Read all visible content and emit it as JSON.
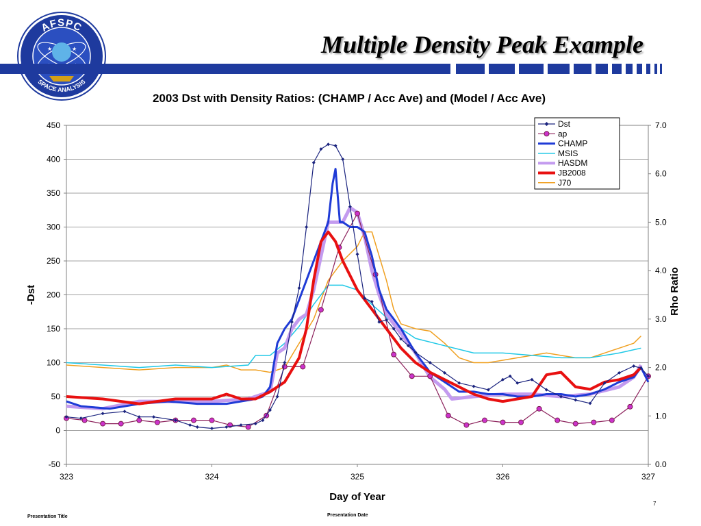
{
  "slide": {
    "title": "Multiple Density Peak Example",
    "logo_text_top": "AFSPC",
    "logo_text_bottom": "SPACE ANALYSIS",
    "footer_title": "Presentation Title",
    "footer_date": "Presentation Date",
    "page_number": "7",
    "brand_color": "#1e3a9e"
  },
  "chart_data": {
    "type": "line",
    "title": "2003 Dst with Density Ratios: (CHAMP / Acc Ave) and (Model / Acc Ave)",
    "xlabel": "Day of Year",
    "ylabel": "-Dst",
    "y2label": "Rho Ratio",
    "xlim": [
      323,
      327
    ],
    "ylim": [
      -50,
      450
    ],
    "y2lim": [
      0,
      7
    ],
    "xticks": [
      "323",
      "324",
      "325",
      "326",
      "327"
    ],
    "yticks": [
      "-50",
      "0",
      "50",
      "100",
      "150",
      "200",
      "250",
      "300",
      "350",
      "400",
      "450"
    ],
    "y2ticks": [
      "0.0",
      "1.0",
      "2.0",
      "3.0",
      "4.0",
      "5.0",
      "6.0",
      "7.0"
    ],
    "grid": true,
    "legend_position": "top-right",
    "series": [
      {
        "name": "Dst",
        "axis": "left",
        "color": "#1a237e",
        "marker": "diamond",
        "x": [
          323.0,
          323.1,
          323.25,
          323.4,
          323.5,
          323.6,
          323.75,
          323.85,
          323.9,
          324.0,
          324.1,
          324.2,
          324.3,
          324.35,
          324.4,
          324.45,
          324.5,
          324.55,
          324.6,
          324.65,
          324.7,
          324.75,
          324.8,
          324.85,
          324.9,
          324.95,
          325.0,
          325.05,
          325.1,
          325.15,
          325.2,
          325.25,
          325.3,
          325.35,
          325.4,
          325.5,
          325.6,
          325.7,
          325.8,
          325.9,
          326.0,
          326.05,
          326.1,
          326.2,
          326.3,
          326.4,
          326.5,
          326.6,
          326.7,
          326.8,
          326.9,
          326.95,
          327.0
        ],
        "y": [
          20,
          18,
          25,
          28,
          20,
          20,
          15,
          8,
          5,
          3,
          5,
          8,
          10,
          15,
          30,
          50,
          100,
          160,
          210,
          300,
          395,
          415,
          422,
          420,
          400,
          330,
          260,
          195,
          190,
          160,
          163,
          150,
          135,
          125,
          115,
          100,
          85,
          70,
          65,
          60,
          75,
          80,
          70,
          75,
          60,
          50,
          45,
          40,
          70,
          85,
          95,
          92,
          80
        ]
      },
      {
        "name": "ap",
        "axis": "left",
        "color": "#8b1f5a",
        "marker": "circle",
        "x": [
          323.0,
          323.125,
          323.25,
          323.375,
          323.5,
          323.625,
          323.75,
          323.875,
          324.0,
          324.125,
          324.25,
          324.375,
          324.5,
          324.625,
          324.75,
          324.875,
          325.0,
          325.125,
          325.25,
          325.375,
          325.5,
          325.625,
          325.75,
          325.875,
          326.0,
          326.125,
          326.25,
          326.375,
          326.5,
          326.625,
          326.75,
          326.875,
          327.0
        ],
        "y": [
          18,
          15,
          10,
          10,
          15,
          12,
          15,
          15,
          15,
          8,
          5,
          22,
          94,
          94,
          178,
          270,
          320,
          230,
          112,
          80,
          80,
          22,
          8,
          15,
          12,
          12,
          32,
          15,
          10,
          12,
          15,
          35,
          80
        ]
      },
      {
        "name": "CHAMP",
        "axis": "right",
        "color": "#1f3bd6",
        "width": 3,
        "x": [
          323.0,
          323.1,
          323.3,
          323.5,
          323.7,
          323.9,
          324.1,
          324.3,
          324.35,
          324.4,
          324.45,
          324.5,
          324.55,
          324.6,
          324.65,
          324.7,
          324.75,
          324.8,
          324.83,
          324.85,
          324.88,
          324.9,
          324.95,
          325.0,
          325.05,
          325.1,
          325.15,
          325.2,
          325.3,
          325.4,
          325.5,
          325.6,
          325.7,
          325.8,
          325.9,
          326.0,
          326.1,
          326.2,
          326.3,
          326.4,
          326.5,
          326.6,
          326.7,
          326.8,
          326.9,
          326.95,
          327.0
        ],
        "y": [
          1.3,
          1.2,
          1.15,
          1.25,
          1.3,
          1.25,
          1.25,
          1.35,
          1.4,
          1.6,
          2.5,
          2.8,
          3.0,
          3.4,
          3.8,
          4.2,
          4.6,
          5.0,
          5.8,
          6.1,
          5.0,
          5.0,
          4.9,
          4.9,
          4.8,
          4.3,
          3.6,
          3.2,
          2.8,
          2.3,
          1.9,
          1.7,
          1.5,
          1.5,
          1.45,
          1.45,
          1.4,
          1.4,
          1.45,
          1.45,
          1.4,
          1.45,
          1.55,
          1.7,
          1.8,
          2.0,
          1.7
        ]
      },
      {
        "name": "MSIS",
        "axis": "right",
        "color": "#1ec8e6",
        "width": 1.5,
        "x": [
          323.0,
          323.25,
          323.5,
          323.75,
          324.0,
          324.25,
          324.3,
          324.4,
          324.5,
          324.6,
          324.7,
          324.8,
          324.9,
          325.0,
          325.1,
          325.25,
          325.4,
          325.6,
          325.8,
          326.0,
          326.2,
          326.4,
          326.6,
          326.8,
          326.95
        ],
        "y": [
          2.1,
          2.05,
          2.0,
          2.05,
          2.0,
          2.05,
          2.25,
          2.25,
          2.5,
          2.85,
          3.3,
          3.7,
          3.7,
          3.6,
          3.3,
          2.9,
          2.6,
          2.45,
          2.3,
          2.3,
          2.25,
          2.2,
          2.2,
          2.3,
          2.4
        ]
      },
      {
        "name": "HASDM",
        "axis": "right",
        "color": "#c39bef",
        "width": 5,
        "x": [
          323.0,
          323.25,
          323.5,
          323.75,
          324.0,
          324.25,
          324.4,
          324.45,
          324.5,
          324.55,
          324.6,
          324.65,
          324.7,
          324.75,
          324.8,
          324.9,
          324.95,
          325.0,
          325.05,
          325.1,
          325.15,
          325.2,
          325.3,
          325.4,
          325.5,
          325.6,
          325.65,
          325.8,
          326.0,
          326.2,
          326.4,
          326.6,
          326.8,
          326.9,
          326.95
        ],
        "y": [
          1.2,
          1.15,
          1.3,
          1.3,
          1.3,
          1.35,
          1.5,
          2.3,
          2.4,
          2.8,
          3.0,
          3.1,
          3.6,
          4.3,
          5.0,
          5.0,
          5.3,
          5.2,
          4.7,
          4.0,
          3.5,
          3.1,
          2.7,
          2.3,
          1.8,
          1.55,
          1.35,
          1.4,
          1.45,
          1.45,
          1.4,
          1.45,
          1.6,
          1.8,
          2.05
        ]
      },
      {
        "name": "JB2008",
        "axis": "right",
        "color": "#e81010",
        "width": 4,
        "x": [
          323.0,
          323.25,
          323.5,
          323.75,
          324.0,
          324.1,
          324.2,
          324.3,
          324.4,
          324.5,
          324.6,
          324.65,
          324.7,
          324.75,
          324.8,
          324.85,
          324.9,
          325.0,
          325.1,
          325.2,
          325.3,
          325.4,
          325.5,
          325.6,
          325.7,
          325.8,
          325.9,
          326.0,
          326.1,
          326.2,
          326.3,
          326.4,
          326.5,
          326.6,
          326.7,
          326.8,
          326.9,
          326.95
        ],
        "y": [
          1.4,
          1.35,
          1.25,
          1.35,
          1.35,
          1.45,
          1.35,
          1.35,
          1.5,
          1.7,
          2.2,
          2.8,
          3.8,
          4.6,
          4.8,
          4.6,
          4.2,
          3.6,
          3.2,
          2.8,
          2.4,
          2.1,
          1.9,
          1.75,
          1.6,
          1.45,
          1.35,
          1.3,
          1.35,
          1.4,
          1.85,
          1.9,
          1.6,
          1.55,
          1.7,
          1.75,
          1.85,
          2.0
        ]
      },
      {
        "name": "J70",
        "axis": "right",
        "color": "#f0a020",
        "width": 1.5,
        "x": [
          323.0,
          323.25,
          323.5,
          323.75,
          324.0,
          324.1,
          324.2,
          324.3,
          324.4,
          324.5,
          324.6,
          324.7,
          324.8,
          324.9,
          325.0,
          325.05,
          325.1,
          325.2,
          325.25,
          325.3,
          325.4,
          325.5,
          325.6,
          325.7,
          325.8,
          325.9,
          326.0,
          326.1,
          326.2,
          326.3,
          326.4,
          326.5,
          326.6,
          326.7,
          326.8,
          326.9,
          326.95
        ],
        "y": [
          2.05,
          2.0,
          1.95,
          2.0,
          2.0,
          2.05,
          1.95,
          1.95,
          1.9,
          2.0,
          2.5,
          3.0,
          3.8,
          4.2,
          4.5,
          4.8,
          4.8,
          3.8,
          3.2,
          2.9,
          2.8,
          2.75,
          2.5,
          2.2,
          2.1,
          2.1,
          2.15,
          2.2,
          2.25,
          2.3,
          2.25,
          2.2,
          2.2,
          2.3,
          2.4,
          2.5,
          2.65
        ]
      }
    ]
  }
}
